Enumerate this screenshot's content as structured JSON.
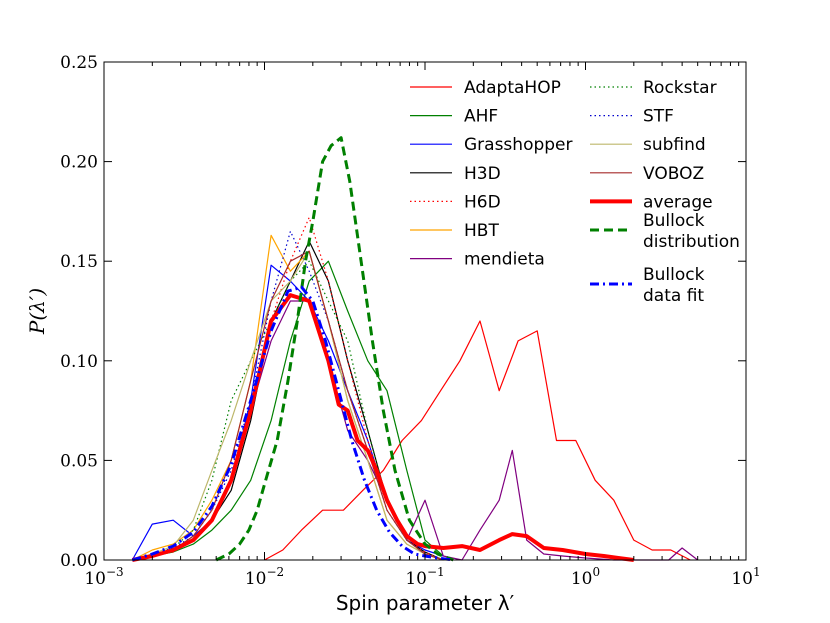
{
  "chart_data": {
    "type": "line",
    "title": "",
    "xlabel": "Spin parameter λ′",
    "ylabel": "P(λ′)",
    "xscale": "log",
    "xlim": [
      0.001,
      10
    ],
    "ylim": [
      0,
      0.25
    ],
    "x_ticks": [
      {
        "value": 0.001,
        "base": "10",
        "exp": "−3"
      },
      {
        "value": 0.01,
        "base": "10",
        "exp": "−2"
      },
      {
        "value": 0.1,
        "base": "10",
        "exp": "−1"
      },
      {
        "value": 1,
        "base": "10",
        "exp": "0"
      },
      {
        "value": 10,
        "base": "10",
        "exp": "1"
      }
    ],
    "y_ticks": [
      {
        "value": 0,
        "label": "0.00"
      },
      {
        "value": 0.05,
        "label": "0.05"
      },
      {
        "value": 0.1,
        "label": "0.10"
      },
      {
        "value": 0.15,
        "label": "0.15"
      },
      {
        "value": 0.2,
        "label": "0.20"
      },
      {
        "value": 0.25,
        "label": "0.25"
      }
    ],
    "grid": false,
    "legend_placement": "top-right",
    "legend_columns": [
      [
        "AdaptaHOP",
        "AHF",
        "Grasshopper",
        "H3D",
        "H6D",
        "HBT",
        "mendieta"
      ],
      [
        "Rockstar",
        "STF",
        "subfind",
        "VOBOZ",
        "average",
        "Bullock distribution",
        "Bullock data fit"
      ]
    ],
    "series": [
      {
        "name": "AdaptaHOP",
        "label_lines": [
          "AdaptaHOP"
        ],
        "color": "#ff0000",
        "style": "solid",
        "width": 1.2,
        "x": [
          0.01,
          0.013,
          0.017,
          0.023,
          0.031,
          0.041,
          0.055,
          0.072,
          0.095,
          0.125,
          0.165,
          0.22,
          0.29,
          0.38,
          0.5,
          0.66,
          0.87,
          1.15,
          1.5,
          2.0,
          2.6,
          3.4,
          4.5
        ],
        "y": [
          0.0,
          0.005,
          0.015,
          0.025,
          0.025,
          0.035,
          0.045,
          0.06,
          0.07,
          0.085,
          0.1,
          0.12,
          0.085,
          0.11,
          0.115,
          0.06,
          0.06,
          0.04,
          0.03,
          0.01,
          0.005,
          0.005,
          0.0
        ]
      },
      {
        "name": "AHF",
        "label_lines": [
          "AHF"
        ],
        "color": "#008000",
        "style": "solid",
        "width": 1.2,
        "x": [
          0.0015,
          0.002,
          0.0027,
          0.0036,
          0.0047,
          0.0062,
          0.0082,
          0.011,
          0.0145,
          0.019,
          0.025,
          0.033,
          0.044,
          0.058,
          0.077,
          0.1,
          0.13
        ],
        "y": [
          0.0,
          0.002,
          0.004,
          0.008,
          0.015,
          0.025,
          0.04,
          0.07,
          0.11,
          0.14,
          0.15,
          0.125,
          0.1,
          0.085,
          0.045,
          0.01,
          0.002
        ]
      },
      {
        "name": "Grasshopper",
        "label_lines": [
          "Grasshopper"
        ],
        "color": "#0000ff",
        "style": "solid",
        "width": 1.2,
        "x": [
          0.0015,
          0.002,
          0.0027,
          0.0036,
          0.0047,
          0.0062,
          0.0082,
          0.011,
          0.0145,
          0.019,
          0.025,
          0.033,
          0.044,
          0.058,
          0.077,
          0.1,
          0.13
        ],
        "y": [
          0.0,
          0.018,
          0.02,
          0.012,
          0.02,
          0.04,
          0.08,
          0.148,
          0.14,
          0.13,
          0.11,
          0.085,
          0.06,
          0.03,
          0.01,
          0.005,
          0.002
        ]
      },
      {
        "name": "H3D",
        "label_lines": [
          "H3D"
        ],
        "color": "#000000",
        "style": "solid",
        "width": 1.2,
        "x": [
          0.0015,
          0.002,
          0.0027,
          0.0036,
          0.0047,
          0.0062,
          0.0082,
          0.011,
          0.0145,
          0.019,
          0.025,
          0.033,
          0.044,
          0.058,
          0.077,
          0.1,
          0.13
        ],
        "y": [
          0.0,
          0.002,
          0.005,
          0.01,
          0.02,
          0.035,
          0.07,
          0.12,
          0.14,
          0.16,
          0.14,
          0.1,
          0.065,
          0.03,
          0.01,
          0.004,
          0.0
        ]
      },
      {
        "name": "H6D",
        "label_lines": [
          "H6D"
        ],
        "color": "#ff0000",
        "style": "dotted",
        "width": 1.2,
        "x": [
          0.0015,
          0.002,
          0.0027,
          0.0036,
          0.0047,
          0.0062,
          0.0082,
          0.011,
          0.0145,
          0.019,
          0.025,
          0.033,
          0.044,
          0.058,
          0.077,
          0.1,
          0.13
        ],
        "y": [
          0.0,
          0.002,
          0.004,
          0.01,
          0.02,
          0.04,
          0.075,
          0.12,
          0.15,
          0.172,
          0.14,
          0.1,
          0.06,
          0.03,
          0.01,
          0.004,
          0.0
        ]
      },
      {
        "name": "HBT",
        "label_lines": [
          "HBT"
        ],
        "color": "#ffa500",
        "style": "solid",
        "width": 1.2,
        "x": [
          0.0015,
          0.002,
          0.0027,
          0.0036,
          0.0047,
          0.0062,
          0.0082,
          0.011,
          0.0145,
          0.019,
          0.025,
          0.033,
          0.044,
          0.058,
          0.077,
          0.1,
          0.13
        ],
        "y": [
          0.0,
          0.005,
          0.008,
          0.015,
          0.03,
          0.05,
          0.09,
          0.163,
          0.145,
          0.155,
          0.12,
          0.08,
          0.05,
          0.02,
          0.008,
          0.003,
          0.0
        ]
      },
      {
        "name": "mendieta",
        "label_lines": [
          "mendieta"
        ],
        "color": "#800080",
        "style": "solid",
        "width": 1.2,
        "x": [
          0.0015,
          0.002,
          0.0027,
          0.0036,
          0.0047,
          0.0062,
          0.0082,
          0.011,
          0.0145,
          0.019,
          0.025,
          0.033,
          0.044,
          0.058,
          0.077,
          0.1,
          0.13,
          0.17,
          0.22,
          0.29,
          0.35,
          0.43,
          0.55,
          0.72,
          1.0,
          1.5,
          2.2,
          3.3,
          4.0,
          5.0
        ],
        "y": [
          0.0,
          0.002,
          0.005,
          0.01,
          0.02,
          0.04,
          0.075,
          0.11,
          0.13,
          0.13,
          0.1,
          0.065,
          0.05,
          0.03,
          0.01,
          0.03,
          0.002,
          0.0,
          0.015,
          0.03,
          0.055,
          0.01,
          0.003,
          0.002,
          0.001,
          0.0,
          0.0,
          0.0,
          0.006,
          0.0
        ]
      },
      {
        "name": "Rockstar",
        "label_lines": [
          "Rockstar"
        ],
        "color": "#008000",
        "style": "dotted",
        "width": 1.2,
        "x": [
          0.0015,
          0.002,
          0.0027,
          0.0036,
          0.0047,
          0.0062,
          0.0082,
          0.011,
          0.0145,
          0.019,
          0.025,
          0.033,
          0.044,
          0.058,
          0.077,
          0.1,
          0.13
        ],
        "y": [
          0.0,
          0.003,
          0.006,
          0.015,
          0.04,
          0.08,
          0.1,
          0.12,
          0.14,
          0.15,
          0.13,
          0.11,
          0.065,
          0.03,
          0.01,
          0.003,
          0.0
        ]
      },
      {
        "name": "STF",
        "label_lines": [
          "STF"
        ],
        "color": "#0000cd",
        "style": "dotted",
        "width": 1.2,
        "x": [
          0.0015,
          0.002,
          0.0027,
          0.0036,
          0.0047,
          0.0062,
          0.0082,
          0.011,
          0.0145,
          0.019,
          0.025,
          0.033,
          0.044,
          0.058,
          0.077,
          0.1,
          0.13
        ],
        "y": [
          0.0,
          0.003,
          0.006,
          0.012,
          0.025,
          0.045,
          0.08,
          0.13,
          0.165,
          0.145,
          0.12,
          0.085,
          0.055,
          0.025,
          0.01,
          0.003,
          0.0
        ]
      },
      {
        "name": "subfind",
        "label_lines": [
          "subfind"
        ],
        "color": "#bdb76b",
        "style": "solid",
        "width": 1.2,
        "x": [
          0.0015,
          0.002,
          0.0027,
          0.0036,
          0.0047,
          0.0062,
          0.0082,
          0.011,
          0.0145,
          0.019,
          0.025,
          0.033,
          0.044,
          0.058,
          0.077,
          0.1,
          0.13
        ],
        "y": [
          0.0,
          0.003,
          0.007,
          0.02,
          0.045,
          0.07,
          0.1,
          0.13,
          0.14,
          0.155,
          0.12,
          0.08,
          0.05,
          0.02,
          0.008,
          0.003,
          0.0
        ]
      },
      {
        "name": "VOBOZ",
        "label_lines": [
          "VOBOZ"
        ],
        "color": "#a52a2a",
        "style": "solid",
        "width": 1.2,
        "x": [
          0.0015,
          0.002,
          0.0027,
          0.0036,
          0.0047,
          0.0062,
          0.0082,
          0.011,
          0.0145,
          0.019,
          0.025,
          0.033,
          0.044,
          0.058,
          0.077,
          0.1,
          0.13
        ],
        "y": [
          0.0,
          0.002,
          0.005,
          0.012,
          0.025,
          0.05,
          0.09,
          0.13,
          0.15,
          0.155,
          0.12,
          0.085,
          0.055,
          0.025,
          0.01,
          0.003,
          0.0
        ]
      },
      {
        "name": "average",
        "label_lines": [
          "average"
        ],
        "color": "#ff0000",
        "style": "solid",
        "width": 4,
        "x": [
          0.0015,
          0.002,
          0.0027,
          0.0036,
          0.0047,
          0.0062,
          0.0082,
          0.011,
          0.0145,
          0.019,
          0.025,
          0.029,
          0.033,
          0.038,
          0.044,
          0.05,
          0.058,
          0.067,
          0.077,
          0.09,
          0.1,
          0.13,
          0.17,
          0.22,
          0.29,
          0.35,
          0.43,
          0.55,
          0.72,
          1.0,
          1.3,
          1.6,
          2.0
        ],
        "y": [
          0.0,
          0.002,
          0.005,
          0.01,
          0.02,
          0.04,
          0.075,
          0.12,
          0.133,
          0.13,
          0.1,
          0.078,
          0.075,
          0.06,
          0.055,
          0.045,
          0.03,
          0.02,
          0.012,
          0.008,
          0.007,
          0.006,
          0.007,
          0.005,
          0.01,
          0.013,
          0.012,
          0.006,
          0.005,
          0.003,
          0.002,
          0.001,
          0.0
        ]
      },
      {
        "name": "Bullock distribution",
        "label_lines": [
          "Bullock",
          "distribution"
        ],
        "color": "#008000",
        "style": "dashed",
        "width": 3,
        "x": [
          0.005,
          0.006,
          0.007,
          0.008,
          0.009,
          0.01,
          0.012,
          0.014,
          0.016,
          0.018,
          0.02,
          0.023,
          0.026,
          0.03,
          0.034,
          0.04,
          0.047,
          0.055,
          0.065,
          0.08,
          0.1,
          0.12,
          0.15
        ],
        "y": [
          0.0,
          0.003,
          0.008,
          0.015,
          0.025,
          0.038,
          0.06,
          0.09,
          0.12,
          0.15,
          0.17,
          0.2,
          0.208,
          0.212,
          0.19,
          0.15,
          0.11,
          0.075,
          0.045,
          0.02,
          0.008,
          0.003,
          0.0
        ]
      },
      {
        "name": "Bullock data fit",
        "label_lines": [
          "Bullock",
          "data fit"
        ],
        "color": "#0000ff",
        "style": "dashdot",
        "width": 3,
        "x": [
          0.0015,
          0.002,
          0.0027,
          0.0036,
          0.0047,
          0.0062,
          0.0082,
          0.011,
          0.014,
          0.017,
          0.02,
          0.024,
          0.029,
          0.035,
          0.042,
          0.05,
          0.06,
          0.072,
          0.086,
          0.1,
          0.12,
          0.15
        ],
        "y": [
          0.0,
          0.003,
          0.007,
          0.014,
          0.027,
          0.048,
          0.08,
          0.115,
          0.135,
          0.137,
          0.13,
          0.11,
          0.085,
          0.06,
          0.04,
          0.025,
          0.014,
          0.007,
          0.003,
          0.002,
          0.001,
          0.0
        ]
      }
    ]
  }
}
